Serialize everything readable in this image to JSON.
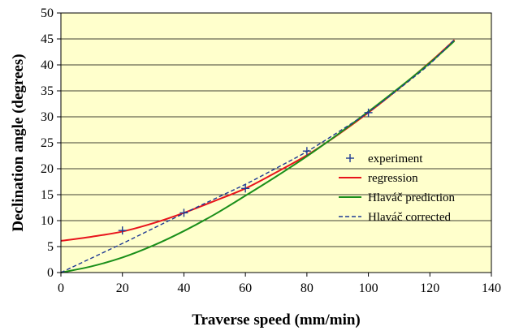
{
  "chart_data": {
    "type": "line",
    "xlabel": "Traverse speed (mm/min)",
    "ylabel": "Declination angle (degrees)",
    "xlim": [
      0,
      140
    ],
    "ylim": [
      0,
      50
    ],
    "xticks": [
      0,
      20,
      40,
      60,
      80,
      100,
      120,
      140
    ],
    "yticks": [
      0,
      5,
      10,
      15,
      20,
      25,
      30,
      35,
      40,
      45,
      50
    ],
    "grid": "horizontal",
    "plot_background": "#ffffcc",
    "legend_position": "right",
    "series": [
      {
        "name": "experiment",
        "kind": "scatter",
        "marker": "plus",
        "color": "#1f3a93",
        "x": [
          20,
          40,
          60,
          80,
          100
        ],
        "y": [
          8.1,
          11.5,
          16.2,
          23.4,
          30.8
        ]
      },
      {
        "name": "regression",
        "kind": "line",
        "style": "solid",
        "width": 2,
        "color": "#e8141c",
        "x": [
          0,
          10,
          20,
          30,
          40,
          50,
          60,
          70,
          80,
          90,
          100,
          110,
          120,
          128
        ],
        "y": [
          6.1,
          6.9,
          7.9,
          9.5,
          11.5,
          13.8,
          16.2,
          19.3,
          22.6,
          26.5,
          30.8,
          35.5,
          40.5,
          44.8
        ]
      },
      {
        "name": "Hlaváč prediction",
        "kind": "line",
        "style": "solid",
        "width": 2,
        "color": "#1a8f1a",
        "x": [
          0,
          10,
          20,
          30,
          40,
          50,
          60,
          70,
          80,
          90,
          100,
          110,
          120,
          128
        ],
        "y": [
          0,
          1.2,
          2.9,
          5.2,
          8.0,
          11.2,
          14.8,
          18.5,
          22.4,
          26.6,
          31.0,
          35.6,
          40.4,
          44.6
        ]
      },
      {
        "name": "Hlaváč corrected",
        "kind": "line",
        "style": "dashed",
        "width": 1.4,
        "color": "#1f3a93",
        "x": [
          0,
          10,
          20,
          30,
          40,
          50,
          60,
          70,
          80,
          90,
          100,
          110,
          120,
          128
        ],
        "y": [
          0,
          2.8,
          5.6,
          8.5,
          11.4,
          14.2,
          17.0,
          20.1,
          23.3,
          27.0,
          30.9,
          35.4,
          40.2,
          44.9
        ]
      }
    ]
  }
}
